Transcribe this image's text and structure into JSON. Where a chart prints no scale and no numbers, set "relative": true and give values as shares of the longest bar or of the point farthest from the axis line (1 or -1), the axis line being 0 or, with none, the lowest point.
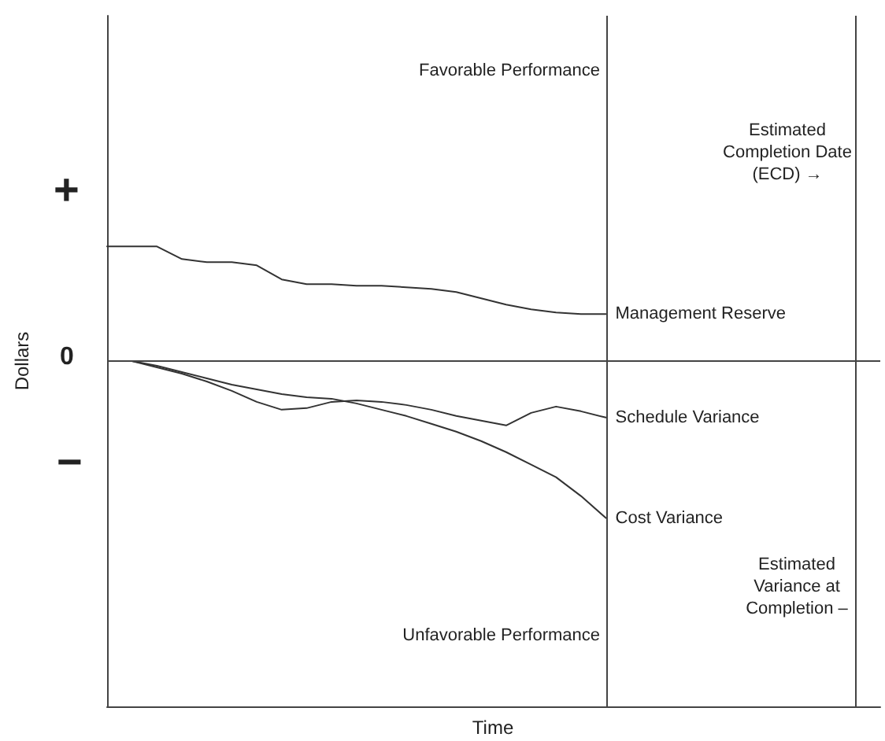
{
  "chart_data": {
    "type": "line",
    "relative": true,
    "ylabel": "Dollars",
    "categories": [
      null,
      null,
      null,
      null,
      null,
      null,
      null,
      null,
      null,
      null,
      null,
      null,
      null,
      null,
      null,
      null,
      null,
      null,
      null,
      null,
      null,
      null,
      null,
      null,
      null,
      null,
      null,
      null,
      null,
      null,
      null,
      null
    ],
    "series": [
      {
        "name": "Management Reserve",
        "color": "#333333",
        "values": [
          0.73,
          0.73,
          0.73,
          0.65,
          0.63,
          0.63,
          0.61,
          0.52,
          0.49,
          0.49,
          0.48,
          0.48,
          0.47,
          0.46,
          0.44,
          0.4,
          0.36,
          0.33,
          0.31,
          0.3,
          0.3,
          null,
          null,
          null,
          null,
          null,
          null,
          null,
          null,
          null,
          null,
          null
        ]
      },
      {
        "name": "Schedule Variance",
        "color": "#333333",
        "values": [
          null,
          0,
          -0.04,
          -0.08,
          -0.13,
          -0.19,
          -0.26,
          -0.31,
          -0.3,
          -0.26,
          -0.25,
          -0.26,
          -0.28,
          -0.31,
          -0.35,
          -0.38,
          -0.41,
          -0.33,
          -0.29,
          -0.32,
          -0.36,
          null,
          null,
          null,
          null,
          null,
          null,
          null,
          null,
          null,
          null,
          null
        ]
      },
      {
        "name": "Cost Variance",
        "color": "#333333",
        "values": [
          null,
          0,
          -0.03,
          -0.07,
          -0.11,
          -0.15,
          -0.18,
          -0.21,
          -0.23,
          -0.24,
          -0.27,
          -0.31,
          -0.35,
          -0.4,
          -0.45,
          -0.51,
          -0.58,
          -0.66,
          -0.74,
          -0.86,
          -1,
          null,
          null,
          null,
          null,
          null,
          null,
          null,
          null,
          null,
          null,
          null
        ]
      }
    ],
    "ref_lines": [
      {
        "axis": "y",
        "value": 0,
        "label": "0"
      }
    ],
    "annotations": [
      "+",
      "−",
      "Favorable Performance",
      "Unfavorable Performance",
      "Estimated\nCompletion Date\n(ECD) →",
      "Estimated\nVariance at\nCompletion –",
      "Time"
    ],
    "marker": "none",
    "line_style": "solid",
    "grid": false,
    "legend": false
  }
}
